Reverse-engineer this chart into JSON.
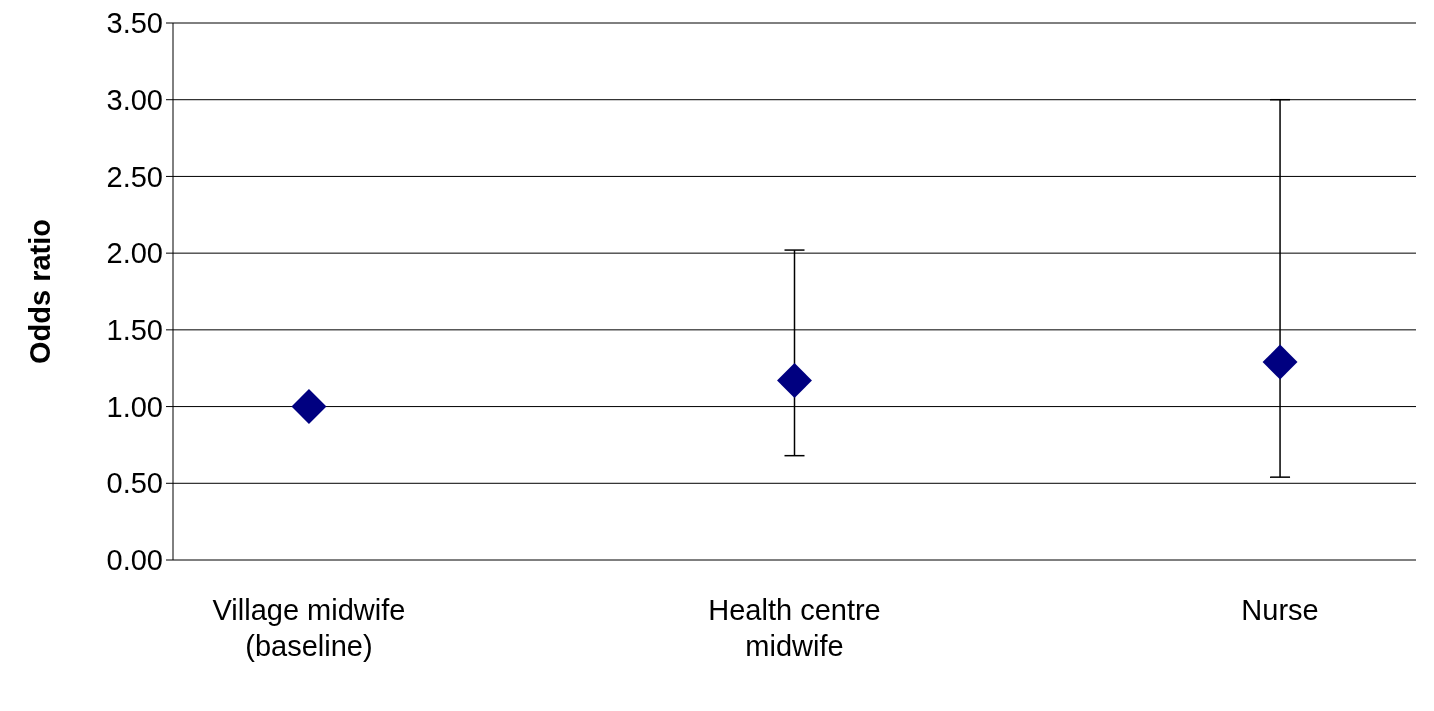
{
  "chart_data": {
    "type": "scatter",
    "ylabel": "Odds ratio",
    "categories": [
      "Village midwife (baseline)",
      "Health centre midwife",
      "Nurse"
    ],
    "series": [
      {
        "color": "#000080",
        "values": [
          1.0,
          1.17,
          1.29
        ],
        "errors": [
          null,
          [
            0.68,
            2.02
          ],
          [
            0.54,
            3.0
          ]
        ]
      }
    ],
    "ylim": [
      0,
      3.5
    ],
    "yticks": [
      {
        "value": 0,
        "label": "0.00"
      },
      {
        "value": 0.5,
        "label": "0.50"
      },
      {
        "value": 1,
        "label": "1.00"
      },
      {
        "value": 1.5,
        "label": "1.50"
      },
      {
        "value": 2,
        "label": "2.00"
      },
      {
        "value": 2.5,
        "label": "2.50"
      },
      {
        "value": 3,
        "label": "3.00"
      },
      {
        "value": 3.5,
        "label": "3.50"
      }
    ],
    "grid": "y",
    "marker": "diamond"
  }
}
